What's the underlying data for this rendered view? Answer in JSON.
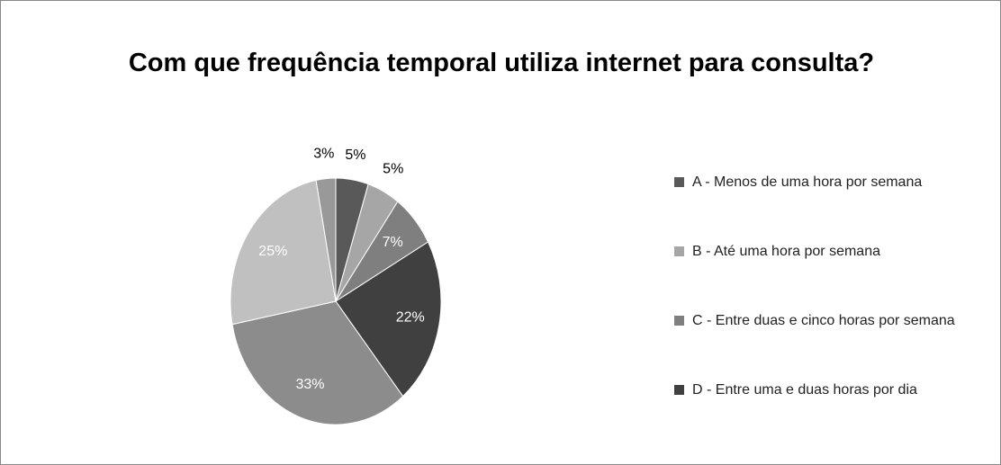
{
  "chart_data": {
    "type": "pie",
    "title": "Com que frequência temporal utiliza internet para consulta?",
    "categories": [
      "A - Menos de uma hora por semana",
      "B - Até uma hora por semana",
      "C - Entre duas e cinco horas por semana",
      "D - Entre uma e duas horas por dia",
      null,
      null,
      null
    ],
    "values": [
      5,
      5,
      7,
      22,
      33,
      25,
      3
    ],
    "value_labels": [
      "5%",
      "5%",
      "7%",
      "22%",
      "33%",
      "25%",
      "3%"
    ],
    "colors": [
      "#595959",
      "#a6a6a6",
      "#7f7f7f",
      "#404040",
      "#8c8c8c",
      "#c0c0c0",
      "#999999"
    ],
    "legend": "right"
  }
}
